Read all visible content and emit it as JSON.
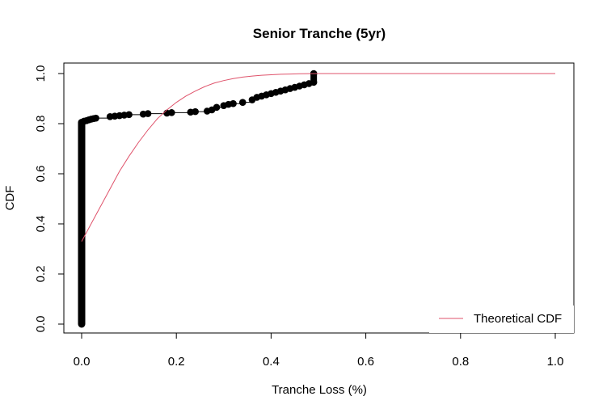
{
  "chart_data": {
    "type": "line",
    "title": "Senior Tranche (5yr)",
    "xlabel": "Tranche Loss (%)",
    "ylabel": "CDF",
    "xlim": [
      0,
      1
    ],
    "ylim": [
      0,
      1
    ],
    "x_ticks": [
      "0.0",
      "0.2",
      "0.4",
      "0.6",
      "0.8",
      "1.0"
    ],
    "y_ticks": [
      "0.0",
      "0.2",
      "0.4",
      "0.6",
      "0.8",
      "1.0"
    ],
    "grid": false,
    "legend": {
      "position": "bottom-right",
      "entries": [
        {
          "label": "Theoretical CDF",
          "color": "#DF536B"
        }
      ]
    },
    "series": [
      {
        "kind": "empirical",
        "color": "#000000",
        "x": [
          0.0,
          0.0,
          0.005,
          0.01,
          0.015,
          0.02,
          0.025,
          0.03,
          0.06,
          0.07,
          0.08,
          0.09,
          0.1,
          0.13,
          0.14,
          0.18,
          0.19,
          0.23,
          0.24,
          0.265,
          0.275,
          0.285,
          0.3,
          0.31,
          0.32,
          0.34,
          0.36,
          0.37,
          0.38,
          0.39,
          0.4,
          0.41,
          0.42,
          0.43,
          0.44,
          0.45,
          0.46,
          0.47,
          0.48,
          0.49,
          0.49
        ],
        "y": [
          0.0,
          0.805,
          0.81,
          0.812,
          0.815,
          0.818,
          0.82,
          0.822,
          0.828,
          0.83,
          0.832,
          0.834,
          0.836,
          0.838,
          0.84,
          0.842,
          0.844,
          0.846,
          0.848,
          0.85,
          0.855,
          0.865,
          0.872,
          0.877,
          0.88,
          0.885,
          0.895,
          0.905,
          0.91,
          0.915,
          0.92,
          0.925,
          0.93,
          0.935,
          0.94,
          0.945,
          0.95,
          0.955,
          0.96,
          0.965,
          1.0
        ]
      },
      {
        "kind": "theoretical",
        "name": "Theoretical CDF",
        "color": "#DF536B",
        "x": [
          0.0,
          0.02,
          0.04,
          0.06,
          0.08,
          0.1,
          0.12,
          0.14,
          0.16,
          0.18,
          0.2,
          0.22,
          0.24,
          0.26,
          0.28,
          0.3,
          0.32,
          0.34,
          0.36,
          0.38,
          0.4,
          0.42,
          0.44,
          0.46,
          0.48,
          0.5,
          0.6,
          0.7,
          0.8,
          0.9,
          1.0
        ],
        "y": [
          0.33,
          0.4,
          0.47,
          0.54,
          0.61,
          0.67,
          0.725,
          0.775,
          0.82,
          0.855,
          0.885,
          0.91,
          0.93,
          0.948,
          0.962,
          0.972,
          0.98,
          0.986,
          0.99,
          0.993,
          0.995,
          0.997,
          0.998,
          0.999,
          0.9995,
          1.0,
          1.0,
          1.0,
          1.0,
          1.0,
          1.0
        ]
      }
    ]
  }
}
